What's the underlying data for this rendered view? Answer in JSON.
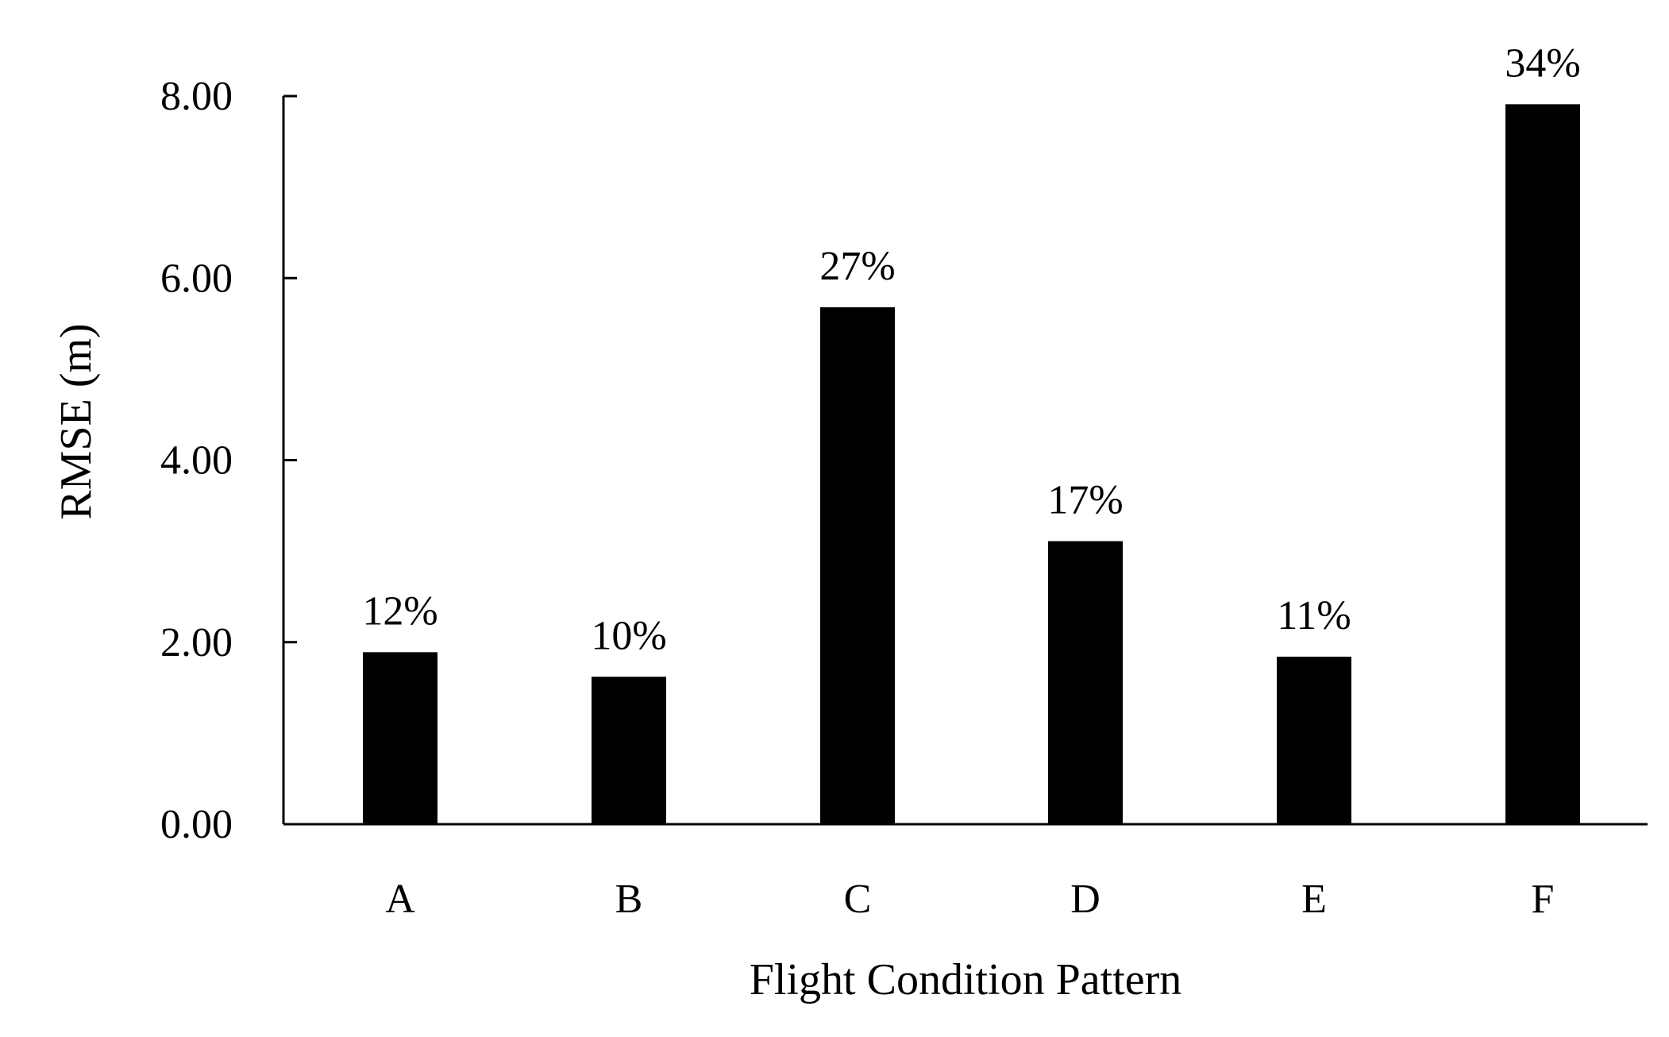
{
  "chart_data": {
    "type": "bar",
    "title": "",
    "xlabel": "Flight Condition Pattern",
    "ylabel": "RMSE (m)",
    "categories": [
      "A",
      "B",
      "C",
      "D",
      "E",
      "F"
    ],
    "values": [
      1.89,
      1.62,
      5.68,
      3.11,
      1.84,
      7.91
    ],
    "data_labels": [
      "12%",
      "10%",
      "27%",
      "17%",
      "11%",
      "34%"
    ],
    "ylim": [
      0,
      8
    ],
    "yticks": [
      0,
      2,
      4,
      6,
      8
    ],
    "ytick_labels": [
      "0.00",
      "2.00",
      "4.00",
      "6.00",
      "8.00"
    ],
    "grid": false,
    "legend": "none",
    "bar_color": "#000000"
  }
}
